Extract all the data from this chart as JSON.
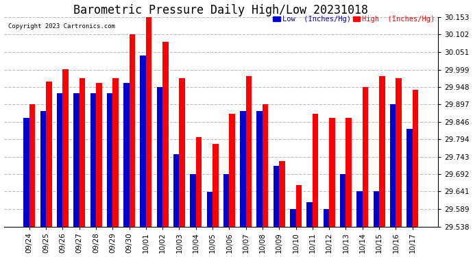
{
  "title": "Barometric Pressure Daily High/Low 20231018",
  "copyright": "Copyright 2023 Cartronics.com",
  "legend_low": "Low  (Inches/Hg)",
  "legend_high": "High  (Inches/Hg)",
  "dates": [
    "09/24",
    "09/25",
    "09/26",
    "09/27",
    "09/28",
    "09/29",
    "09/30",
    "10/01",
    "10/02",
    "10/03",
    "10/04",
    "10/05",
    "10/06",
    "10/07",
    "10/08",
    "10/09",
    "10/10",
    "10/11",
    "10/12",
    "10/13",
    "10/14",
    "10/15",
    "10/16",
    "10/17"
  ],
  "high": [
    29.897,
    29.963,
    30.0,
    29.975,
    29.96,
    29.975,
    30.102,
    30.153,
    30.08,
    29.975,
    29.8,
    29.78,
    29.87,
    29.98,
    29.897,
    29.73,
    29.66,
    29.87,
    29.857,
    29.857,
    29.948,
    29.98,
    29.975,
    29.94
  ],
  "low": [
    29.857,
    29.878,
    29.93,
    29.93,
    29.93,
    29.93,
    29.96,
    30.04,
    29.948,
    29.75,
    29.692,
    29.64,
    29.692,
    29.878,
    29.878,
    29.716,
    29.589,
    29.61,
    29.589,
    29.692,
    29.641,
    29.641,
    29.897,
    29.825
  ],
  "ylim_min": 29.538,
  "ylim_max": 30.153,
  "yticks": [
    29.538,
    29.589,
    29.641,
    29.692,
    29.743,
    29.794,
    29.846,
    29.897,
    29.948,
    29.999,
    30.051,
    30.102,
    30.153
  ],
  "bar_width": 0.35,
  "high_color": "#ff0000",
  "low_color": "#0000cc",
  "bg_color": "#ffffff",
  "grid_color": "#bbbbbb",
  "title_fontsize": 12,
  "tick_fontsize": 7.5
}
